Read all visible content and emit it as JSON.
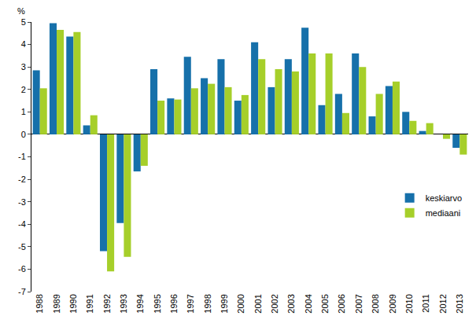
{
  "chart_data": {
    "type": "bar",
    "y_label": "%",
    "categories": [
      "1988",
      "1989",
      "1990",
      "1991",
      "1992",
      "1993",
      "1994",
      "1995",
      "1996",
      "1997",
      "1998",
      "1999",
      "2000",
      "2001",
      "2002",
      "2003",
      "2004",
      "2005",
      "2006",
      "2007",
      "2008",
      "2009",
      "2010",
      "2011",
      "2012",
      "2013"
    ],
    "series": [
      {
        "name": "keskiarvo",
        "color": "#1670aa",
        "values": [
          2.85,
          4.95,
          4.35,
          0.4,
          -5.2,
          -3.95,
          -1.65,
          2.9,
          1.6,
          3.45,
          2.5,
          3.35,
          1.5,
          4.1,
          2.1,
          3.35,
          4.75,
          1.3,
          1.8,
          3.6,
          0.8,
          2.15,
          1.0,
          0.15,
          0.0,
          -0.6
        ]
      },
      {
        "name": "mediaani",
        "color": "#a6cf2a",
        "values": [
          2.05,
          4.65,
          4.55,
          0.85,
          -6.1,
          -5.45,
          -1.4,
          1.5,
          1.55,
          2.05,
          2.25,
          2.1,
          1.75,
          3.35,
          2.9,
          2.8,
          3.6,
          3.6,
          0.95,
          3.0,
          1.8,
          2.35,
          0.6,
          0.5,
          -0.2,
          -0.9
        ]
      }
    ],
    "ylim": [
      -7,
      5
    ],
    "yticks": [
      -7,
      -6,
      -5,
      -4,
      -3,
      -2,
      -1,
      0,
      1,
      2,
      3,
      4,
      5
    ],
    "grid": false,
    "legend": "right"
  }
}
